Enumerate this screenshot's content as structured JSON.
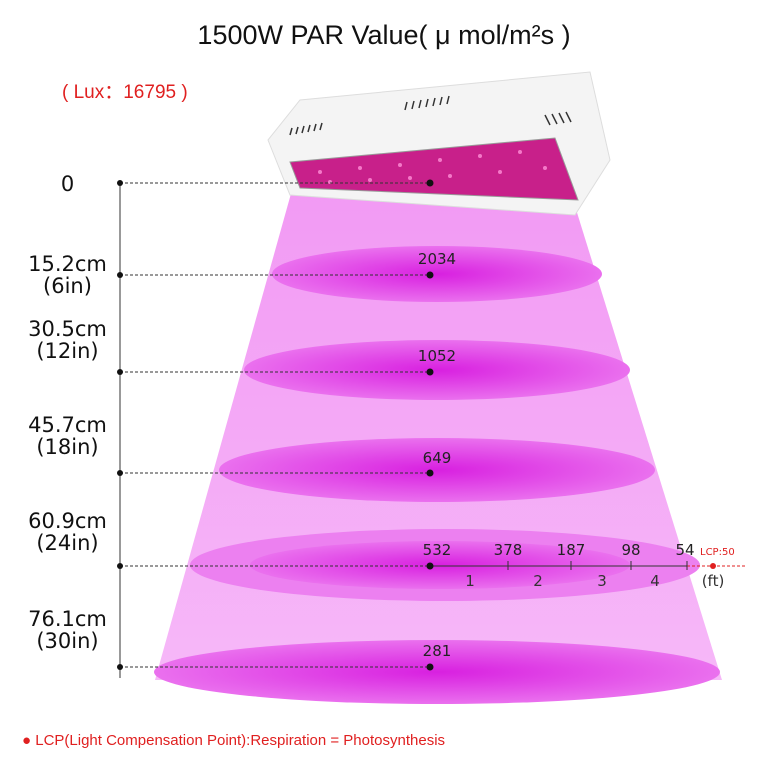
{
  "title": "1500W PAR Value( μ mol/m²s )",
  "lux": "( Lux：16795 )",
  "distances": [
    {
      "cm": "0",
      "in": ""
    },
    {
      "cm": "15.2cm",
      "in": "(6in)"
    },
    {
      "cm": "30.5cm",
      "in": "(12in)"
    },
    {
      "cm": "45.7cm",
      "in": "(18in)"
    },
    {
      "cm": "60.9cm",
      "in": "(24in)"
    },
    {
      "cm": "76.1cm",
      "in": "(30in)"
    }
  ],
  "center_values": [
    "2034",
    "1052",
    "649",
    "532",
    "281"
  ],
  "horizontal_values": [
    "378",
    "187",
    "98",
    "54"
  ],
  "feet_labels": [
    "1",
    "2",
    "3",
    "4",
    "(ft)"
  ],
  "lcp_marker": "LCP:50",
  "footnote": "● LCP(Light Compensation Point):Respiration = Photosynthesis",
  "colors": {
    "light": "#f08cf0",
    "ellipse": "#e040e8",
    "accent": "#e02020"
  }
}
